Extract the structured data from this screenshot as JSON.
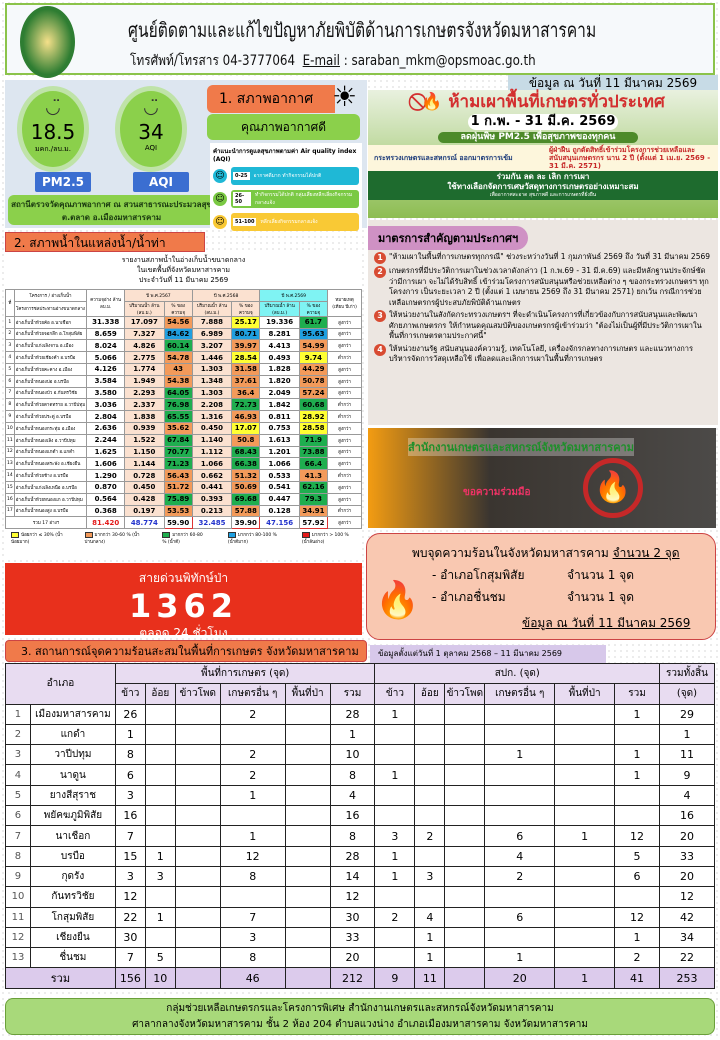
{
  "header": {
    "title": "ศูนย์ติดตามและแก้ไขปัญหาภัยพิบัติด้านการเกษตรจังหวัดมหาสารคาม",
    "phone": "โทรศัพท์/โทรสาร 04-3777064",
    "email_label": "E-mail",
    "email": ": saraban_mkm@opsmoac.go.th",
    "date": "ข้อมูล ณ วันที่ 11 มีนาคม 2569"
  },
  "weather": {
    "section_title": "1. สภาพอากาศ",
    "quality": "คุณภาพอากาศดี",
    "pm25": {
      "value": "18.5",
      "unit": "มคก./ลบ.ม.",
      "label": "PM2.5"
    },
    "aqi": {
      "value": "34",
      "unit": "AQI",
      "label": "AQI"
    },
    "station": "สถานีตรวจวัดคุณภาพอากาศ ณ สวนสาธารณะประมวลสุข ต.ตลาด อ.เมืองมหาสารคาม",
    "legend_title": "คำแนะนำการดูแลสุขภาพตามค่า Air quality index (AQI)",
    "legend": [
      {
        "range": "0-25",
        "text": "อากาศดีมาก ทำกิจกรรมได้ปกติ",
        "color": "#1fb8d6"
      },
      {
        "range": "26-50",
        "text": "ทำกิจกรรมได้ปกติ กลุ่มเสี่ยงหลีกเลี่ยงกิจกรรมกลางแจ้ง",
        "color": "#7ac943"
      },
      {
        "range": "51-100",
        "text": "หลีกเลี่ยงกิจกรรมกลางแจ้ง",
        "color": "#f9c935"
      }
    ]
  },
  "poster": {
    "title": "ห้ามเผาพื้นที่เกษตรทั่วประเทศ",
    "dates": "1 ก.พ. - 31 มี.ค. 2569",
    "pm": "ลดฝุ่นพิษ PM2.5 เพื่อสุขภาพของทุกคน",
    "ministry": "กระทรวงเกษตรและสหกรณ์ ออกมาตรการเข้ม",
    "penalty": "ผู้ฝ่าฝืน ถูกตัดสิทธิ์เข้าร่วมโครงการช่วยเหลือและสนับสนุนเกษตรกร นาน 2 ปี (ตั้งแต่ 1 เม.ย. 2569 - 31 มี.ค. 2571)",
    "campaign": "ร่วมกัน ลด ละ เลิก การเผา",
    "campaign2": "ใช้ทางเลือกจัดการเศษวัสดุทางการเกษตรอย่างเหมาะสม",
    "campaign3": "เพื่ออากาศสะอาด สุขภาพดี และการเกษตรที่ยั่งยืน"
  },
  "measures": {
    "title": "มาตรการสำคัญตามประกาศฯ",
    "items": [
      "\"ห้ามเผาในพื้นที่การเกษตรทุกกรณี\" ช่วงระหว่างวันที่ 1 กุมภาพันธ์ 2569 ถึง วันที่ 31 มีนาคม 2569",
      "เกษตรกรที่มีประวัติการเผาในช่วงเวลาดังกล่าว (1 ก.พ.69 - 31 มี.ค.69) และมีหลักฐานประจักษ์ชัดว่ามีการเผา จะไม่ได้รับสิทธิ์ เข้าร่วมโครงการสนับสนุนหรือช่วยเหลือต่าง ๆ ของกระทรวงเกษตรฯ ทุกโครงการ เป็นระยะเวลา 2 ปี (ตั้งแต่ 1 เมษายน 2569 ถึง 31 มีนาคม 2571) ยกเว้น กรณีการช่วยเหลือเกษตรกรผู้ประสบภัยพิบัติด้านเกษตร",
      "ให้หน่วยงานในสังกัดกระทรวงเกษตรฯ ที่จะดำเนินโครงการที่เกี่ยวข้องกับการสนับสนุนและพัฒนาศักยภาพเกษตรกร ให้กำหนดคุณสมบัติของเกษตรกรผู้เข้าร่วมว่า \"ต้องไม่เป็นผู้ที่มีประวัติการเผาในพื้นที่การเกษตรตามประกาศนี้\"",
      "ให้หน่วยงานรัฐ สนับสนุนองค์ความรู้, เทคโนโลยี, เครื่องจักรกลทางการเกษตร และแนวทางการบริหารจัดการวัสดุเหลือใช้ เพื่อลดและเลิกการเผาในพื้นที่การเกษตร"
    ]
  },
  "fire_banner": {
    "office": "สำนักงานเกษตรและสหกรณ์จังหวัดมหาสารคาม",
    "plea": "ขอความร่วมมือ"
  },
  "hotspot": {
    "headline": "พบจุดความร้อนในจังหวัดมหาสารคาม",
    "count": "จำนวน 2 จุด",
    "items": [
      {
        "district": "- อำเภอโกสุมพิสัย",
        "count": "จำนวน 1 จุด"
      },
      {
        "district": "- อำเภอชื่นชม",
        "count": "จำนวน 1 จุด"
      }
    ],
    "date": "ข้อมูล ณ วันที่ 11 มีนาคม 2569"
  },
  "water": {
    "section_title": "2. สภาพน้ำในแหล่งน้ำ/น้ำท่า",
    "title1": "รายงานสภาพน้ำในอ่างเก็บน้ำขนาดกลาง",
    "title2": "ในเขตพื้นที่จังหวัดมหาสารคาม",
    "title3": "ประจำวันที่    11    มีนาคม  2569",
    "headers": {
      "no": "ที่",
      "project": "โครงการ / อ่างเก็บน้ำ",
      "sub": "โครงการชลประทานอ่างขนาดกลาง",
      "capacity": "ความจุอ่าง ล้าน ลบ.ม.",
      "y2567": "ปี พ.ศ.2567",
      "y2568": "ปี พ.ศ.2568",
      "y2569": "ปี พ.ศ.2569",
      "vol": "ปริมาณน้ำ ล้าน (ลบ.ม.)",
      "pct": "% ของ ความจุ",
      "note": "หมายเหตุ (เทียบ ปีเก่า)"
    },
    "rows": [
      {
        "name": "อ่างเก็บน้ำห้วยค้อ อ.นาเชือก",
        "cap": "31.338",
        "v67": "17.097",
        "p67": 54.56,
        "v68": "7.888",
        "p68": 25.17,
        "v69": "19.336",
        "p69": 61.7,
        "note": "สูงกว่า"
      },
      {
        "name": "อ่างเก็บน้ำห้วยจอกลึก อ.โกสุมพิสัย",
        "cap": "8.659",
        "v67": "7.327",
        "p67": 84.62,
        "v68": "6.989",
        "p68": 80.71,
        "v69": "8.281",
        "p69": 95.63,
        "note": "สูงกว่า"
      },
      {
        "name": "อ่างเก็บน้ำแก่งเลิงจาน อ.เมือง",
        "cap": "8.024",
        "v67": "4.826",
        "p67": 60.14,
        "v68": "3.207",
        "p68": 39.97,
        "v69": "4.413",
        "p69": 54.99,
        "note": "สูงกว่า"
      },
      {
        "name": "อ่างเก็บน้ำห้วยเชียงคำ อ.บรบือ",
        "cap": "5.066",
        "v67": "2.775",
        "p67": 54.78,
        "v68": "1.446",
        "p68": 28.54,
        "v69": "0.493",
        "p69": 9.74,
        "note": "ต่ำกว่า"
      },
      {
        "name": "อ่างเก็บน้ำห้วยคะคาง อ.เมือง",
        "cap": "4.126",
        "v67": "1.774",
        "p67": 43.0,
        "v68": "1.303",
        "p68": 31.58,
        "v69": "1.828",
        "p69": 44.29,
        "note": "สูงกว่า"
      },
      {
        "name": "อ่างเก็บน้ำหนองบ่อ อ.บรบือ",
        "cap": "3.584",
        "v67": "1.949",
        "p67": 54.38,
        "v68": "1.348",
        "p68": 37.61,
        "v69": "1.820",
        "p69": 50.78,
        "note": "สูงกว่า"
      },
      {
        "name": "อ่างเก็บน้ำหนองบัว อ.กันทรวิชัย",
        "cap": "3.580",
        "v67": "2.293",
        "p67": 64.05,
        "v68": "1.303",
        "p68": 36.4,
        "v69": "2.049",
        "p69": 57.24,
        "note": "สูงกว่า"
      },
      {
        "name": "อ่างเก็บน้ำห้วยตาดทราย อ.วาปีปทุม",
        "cap": "3.036",
        "v67": "2.337",
        "p67": 76.98,
        "v68": "2.208",
        "p68": 72.73,
        "v69": "1.842",
        "p69": 60.68,
        "note": "ต่ำกว่า"
      },
      {
        "name": "อ่างเก็บน้ำห้วยประดู่ อ.บรบือ",
        "cap": "2.804",
        "v67": "1.838",
        "p67": 65.55,
        "v68": "1.316",
        "p68": 46.93,
        "v69": "0.811",
        "p69": 28.92,
        "note": "ต่ำกว่า"
      },
      {
        "name": "อ่างเก็บน้ำหนองกระทุ่ม อ.เมือง",
        "cap": "2.636",
        "v67": "0.939",
        "p67": 35.62,
        "v68": "0.450",
        "p68": 17.07,
        "v69": "0.753",
        "p69": 28.58,
        "note": "สูงกว่า"
      },
      {
        "name": "อ่างเก็บน้ำหนองเลิง อ.วาปีปทุม",
        "cap": "2.244",
        "v67": "1.522",
        "p67": 67.84,
        "v68": "1.140",
        "p68": 50.8,
        "v69": "1.613",
        "p69": 71.9,
        "note": "สูงกว่า"
      },
      {
        "name": "อ่างเก็บน้ำหนองแกดำ อ.แกดำ",
        "cap": "1.625",
        "v67": "1.150",
        "p67": 70.77,
        "v68": "1.112",
        "p68": 68.43,
        "v69": "1.201",
        "p69": 73.88,
        "note": "สูงกว่า"
      },
      {
        "name": "อ่างเก็บน้ำหนองสระพัง อ.เชียงยืน",
        "cap": "1.606",
        "v67": "1.144",
        "p67": 71.23,
        "v68": "1.066",
        "p68": 66.38,
        "v69": "1.066",
        "p69": 66.4,
        "note": "สูงกว่า"
      },
      {
        "name": "อ่างเก็บน้ำห้วยช้าง อ.บรบือ",
        "cap": "1.290",
        "v67": "0.728",
        "p67": 56.43,
        "v68": "0.662",
        "p68": 51.32,
        "v69": "0.533",
        "p69": 41.3,
        "note": "ต่ำกว่า"
      },
      {
        "name": "อ่างเก็บน้ำแก่งเลิงเหนือ อ.บรบือ",
        "cap": "0.870",
        "v67": "0.450",
        "p67": 51.72,
        "v68": "0.441",
        "p68": 50.69,
        "v69": "0.541",
        "p69": 62.16,
        "note": "สูงกว่า"
      },
      {
        "name": "อ่างเก็บน้ำห้วยหนองแก อ.วาปีปทุม",
        "cap": "0.564",
        "v67": "0.428",
        "p67": 75.89,
        "v68": "0.393",
        "p68": 69.68,
        "v69": "0.447",
        "p69": 79.3,
        "note": "สูงกว่า"
      },
      {
        "name": "อ่างเก็บน้ำหนองสูง อ.บรบือ",
        "cap": "0.368",
        "v67": "0.197",
        "p67": 53.53,
        "v68": "0.213",
        "p68": 57.88,
        "v69": "0.128",
        "p69": 34.91,
        "note": "ต่ำกว่า"
      }
    ],
    "total": {
      "name": "รวม 17 อ่างฯ",
      "cap": "81.420",
      "v67": "48.774",
      "p67": "59.90",
      "v68": "32.485",
      "p68": "39.90",
      "v69": "47.156",
      "p69": "57.92",
      "note": "สูงกว่า"
    },
    "legend": [
      {
        "label": "น้อยกว่า ≤ 30% (น้ำน้อยมาก)",
        "color": "#ffff33"
      },
      {
        "label": "มากกว่า 30-60 % (น้ำปานกลาง)",
        "color": "#f39a5a"
      },
      {
        "label": "มากกว่า 60-80 % (น้ำดี)",
        "color": "#1fae4f"
      },
      {
        "label": "มากกว่า 80-100 % (น้ำดีมาก)",
        "color": "#1f9fe0"
      },
      {
        "label": "มากกว่า > 100 % (น้ำล้นอ่าง)",
        "color": "#e31b1b"
      }
    ]
  },
  "hotline": {
    "title": "สายด่วนพิทักษ์ป่า",
    "number": "1362",
    "hours": "ตลอด 24 ชั่วโมง"
  },
  "hotspot_table": {
    "section_title": "3. สถานการณ์จุดความร้อนสะสมในพื้นที่การเกษตร จังหวัดมหาสารคาม",
    "date_range": "ข้อมูลตั้งแต่วันที่ 1 ตุลาคม 2568 – 11 มีนาคม 2569",
    "headers": {
      "district": "อำเภอ",
      "agri": "พื้นที่การเกษตร (จุด)",
      "alro": "สปก. (จุด)",
      "grand": "รวมทั้งสิ้น",
      "grand_unit": "(จุด)",
      "cols": [
        "ข้าว",
        "อ้อย",
        "ข้าวโพด",
        "เกษตรอื่น ๆ",
        "พื้นที่ป่า",
        "รวม"
      ]
    },
    "rows": [
      {
        "no": "1",
        "name": "เมืองมหาสารคาม",
        "v": [
          "26",
          "",
          "",
          "2",
          "",
          "28",
          "1",
          "",
          "",
          "",
          "",
          "1",
          "29"
        ]
      },
      {
        "no": "2",
        "name": "แกดำ",
        "v": [
          "1",
          "",
          "",
          "",
          "",
          "1",
          "",
          "",
          "",
          "",
          "",
          "",
          "1"
        ]
      },
      {
        "no": "3",
        "name": "วาปีปทุม",
        "v": [
          "8",
          "",
          "",
          "2",
          "",
          "10",
          "",
          "",
          "",
          "1",
          "",
          "1",
          "11"
        ]
      },
      {
        "no": "4",
        "name": "นาดูน",
        "v": [
          "6",
          "",
          "",
          "2",
          "",
          "8",
          "1",
          "",
          "",
          "",
          "",
          "1",
          "9"
        ]
      },
      {
        "no": "5",
        "name": "ยางสีสุราช",
        "v": [
          "3",
          "",
          "",
          "1",
          "",
          "4",
          "",
          "",
          "",
          "",
          "",
          "",
          "4"
        ]
      },
      {
        "no": "6",
        "name": "พยัคฆภูมิพิสัย",
        "v": [
          "16",
          "",
          "",
          "",
          "",
          "16",
          "",
          "",
          "",
          "",
          "",
          "",
          "16"
        ]
      },
      {
        "no": "7",
        "name": "นาเชือก",
        "v": [
          "7",
          "",
          "",
          "1",
          "",
          "8",
          "3",
          "2",
          "",
          "6",
          "1",
          "12",
          "20"
        ]
      },
      {
        "no": "8",
        "name": "บรบือ",
        "v": [
          "15",
          "1",
          "",
          "12",
          "",
          "28",
          "1",
          "",
          "",
          "4",
          "",
          "5",
          "33"
        ]
      },
      {
        "no": "9",
        "name": "กุดรัง",
        "v": [
          "3",
          "3",
          "",
          "8",
          "",
          "14",
          "1",
          "3",
          "",
          "2",
          "",
          "6",
          "20"
        ]
      },
      {
        "no": "10",
        "name": "กันทรวิชัย",
        "v": [
          "12",
          "",
          "",
          "",
          "",
          "12",
          "",
          "",
          "",
          "",
          "",
          "",
          "12"
        ]
      },
      {
        "no": "11",
        "name": "โกสุมพิสัย",
        "v": [
          "22",
          "1",
          "",
          "7",
          "",
          "30",
          "2",
          "4",
          "",
          "6",
          "",
          "12",
          "42"
        ]
      },
      {
        "no": "12",
        "name": "เชียงยืน",
        "v": [
          "30",
          "",
          "",
          "3",
          "",
          "33",
          "",
          "1",
          "",
          "",
          "",
          "1",
          "34"
        ]
      },
      {
        "no": "13",
        "name": "ชื่นชม",
        "v": [
          "7",
          "5",
          "",
          "8",
          "",
          "20",
          "",
          "1",
          "",
          "1",
          "",
          "2",
          "22"
        ]
      }
    ],
    "total": {
      "label": "รวม",
      "v": [
        "156",
        "10",
        "",
        "46",
        "",
        "212",
        "9",
        "11",
        "",
        "20",
        "1",
        "41",
        "253"
      ]
    }
  },
  "footer": {
    "line1": "กลุ่มช่วยเหลือเกษตรกรและโครงการพิเศษ สำนักงานเกษตรและสหกรณ์จังหวัดมหาสารคาม",
    "line2": "ศาลากลางจังหวัดมหาสารคาม ชั้น 2 ห้อง 204 ตำบลแวงน่าง อำเภอเมืองมหาสารคาม จังหวัดมหาสารคาม"
  }
}
